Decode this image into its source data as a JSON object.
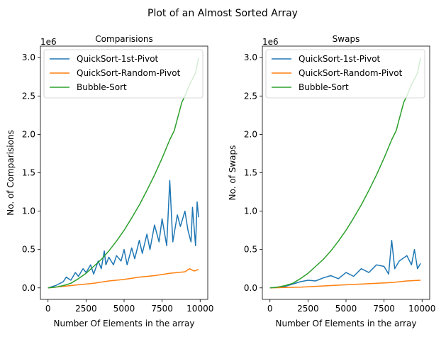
{
  "figure": {
    "suptitle": "Plot of an Almost Sorted Array"
  },
  "colors": {
    "quicksort_first": "#1f77b4",
    "quicksort_random": "#ff7f0e",
    "bubble": "#2ca02c"
  },
  "chart_data": [
    {
      "type": "line",
      "title": "Comparisions",
      "xlabel": "Number Of Elements in the array",
      "ylabel": "No. of Comparisions",
      "offset_label": "1e6",
      "xlim": [
        -500,
        10500
      ],
      "ylim": [
        -0.15,
        3.15
      ],
      "xticks": [
        0,
        2500,
        5000,
        7500,
        10000
      ],
      "xtick_labels": [
        "0",
        "2500",
        "5000",
        "7500",
        "10000"
      ],
      "yticks": [
        0,
        0.5,
        1,
        1.5,
        2,
        2.5,
        3
      ],
      "ytick_labels": [
        "0.0",
        "0.5",
        "1.0",
        "1.5",
        "2.0",
        "2.5",
        "3.0"
      ],
      "grid": false,
      "legend": "top-left",
      "series": [
        {
          "name": "QuickSort-1st-Pivot",
          "color": "#1f77b4",
          "x": [
            0,
            500,
            1000,
            1200,
            1500,
            1800,
            2000,
            2300,
            2500,
            2800,
            3000,
            3300,
            3500,
            3700,
            3800,
            4000,
            4300,
            4500,
            4800,
            5000,
            5200,
            5500,
            5700,
            6000,
            6200,
            6500,
            6700,
            7000,
            7300,
            7500,
            7800,
            8000,
            8200,
            8500,
            8700,
            9000,
            9200,
            9400,
            9500,
            9700,
            9800,
            9900
          ],
          "y": [
            0.0,
            0.03,
            0.08,
            0.14,
            0.1,
            0.2,
            0.15,
            0.25,
            0.2,
            0.3,
            0.18,
            0.35,
            0.25,
            0.48,
            0.3,
            0.4,
            0.3,
            0.42,
            0.35,
            0.5,
            0.3,
            0.52,
            0.38,
            0.62,
            0.45,
            0.7,
            0.5,
            0.82,
            0.6,
            0.9,
            0.55,
            1.4,
            0.6,
            0.95,
            0.8,
            1.0,
            0.75,
            0.6,
            1.05,
            0.55,
            1.12,
            0.92
          ]
        },
        {
          "name": "QuickSort-Random-Pivot",
          "color": "#ff7f0e",
          "x": [
            0,
            1000,
            2000,
            3000,
            4000,
            5000,
            6000,
            7000,
            8000,
            9000,
            9300,
            9600,
            9900
          ],
          "y": [
            0.0,
            0.02,
            0.04,
            0.06,
            0.09,
            0.11,
            0.14,
            0.16,
            0.19,
            0.21,
            0.25,
            0.22,
            0.24
          ]
        },
        {
          "name": "Bubble-Sort",
          "color": "#2ca02c",
          "x": [
            0,
            500,
            1000,
            1500,
            2000,
            2500,
            3000,
            3500,
            4000,
            4500,
            5000,
            5500,
            6000,
            6500,
            7000,
            7500,
            8000,
            8300,
            8500,
            8800,
            9000,
            9300,
            9500,
            9700,
            9900
          ],
          "y": [
            0.0,
            0.01,
            0.03,
            0.06,
            0.12,
            0.19,
            0.28,
            0.37,
            0.48,
            0.61,
            0.75,
            0.91,
            1.08,
            1.27,
            1.47,
            1.69,
            1.93,
            2.05,
            2.2,
            2.42,
            2.5,
            2.65,
            2.72,
            2.8,
            3.0
          ]
        }
      ]
    },
    {
      "type": "line",
      "title": "Swaps",
      "xlabel": "Number Of Elements in the array",
      "ylabel": "No. of Swaps",
      "offset_label": "1e6",
      "xlim": [
        -500,
        10500
      ],
      "ylim": [
        -0.15,
        3.15
      ],
      "xticks": [
        0,
        2500,
        5000,
        7500,
        10000
      ],
      "xtick_labels": [
        "0",
        "2500",
        "5000",
        "7500",
        "10000"
      ],
      "yticks": [
        0,
        0.5,
        1,
        1.5,
        2,
        2.5,
        3
      ],
      "ytick_labels": [
        "0.0",
        "0.5",
        "1.0",
        "1.5",
        "2.0",
        "2.5",
        "3.0"
      ],
      "grid": false,
      "legend": "top-left",
      "series": [
        {
          "name": "QuickSort-1st-Pivot",
          "color": "#1f77b4",
          "x": [
            0,
            1000,
            1500,
            2000,
            2500,
            3000,
            3500,
            4000,
            4500,
            5000,
            5500,
            6000,
            6500,
            7000,
            7500,
            7800,
            8000,
            8200,
            8500,
            9000,
            9300,
            9500,
            9700,
            9900
          ],
          "y": [
            0.0,
            0.02,
            0.05,
            0.08,
            0.1,
            0.09,
            0.13,
            0.16,
            0.12,
            0.2,
            0.15,
            0.25,
            0.2,
            0.3,
            0.28,
            0.18,
            0.62,
            0.25,
            0.35,
            0.42,
            0.3,
            0.5,
            0.25,
            0.32
          ]
        },
        {
          "name": "QuickSort-Random-Pivot",
          "color": "#ff7f0e",
          "x": [
            0,
            2000,
            4000,
            6000,
            8000,
            9000,
            9900
          ],
          "y": [
            0.0,
            0.01,
            0.03,
            0.05,
            0.07,
            0.09,
            0.1
          ]
        },
        {
          "name": "Bubble-Sort",
          "color": "#2ca02c",
          "x": [
            0,
            500,
            1000,
            1500,
            2000,
            2500,
            3000,
            3500,
            4000,
            4500,
            5000,
            5500,
            6000,
            6500,
            7000,
            7500,
            8000,
            8300,
            8500,
            8800,
            9000,
            9300,
            9500,
            9700,
            9900
          ],
          "y": [
            0.0,
            0.01,
            0.03,
            0.06,
            0.12,
            0.19,
            0.28,
            0.37,
            0.48,
            0.61,
            0.75,
            0.91,
            1.08,
            1.27,
            1.47,
            1.69,
            1.93,
            2.05,
            2.2,
            2.42,
            2.5,
            2.65,
            2.72,
            2.8,
            3.0
          ]
        }
      ]
    }
  ]
}
